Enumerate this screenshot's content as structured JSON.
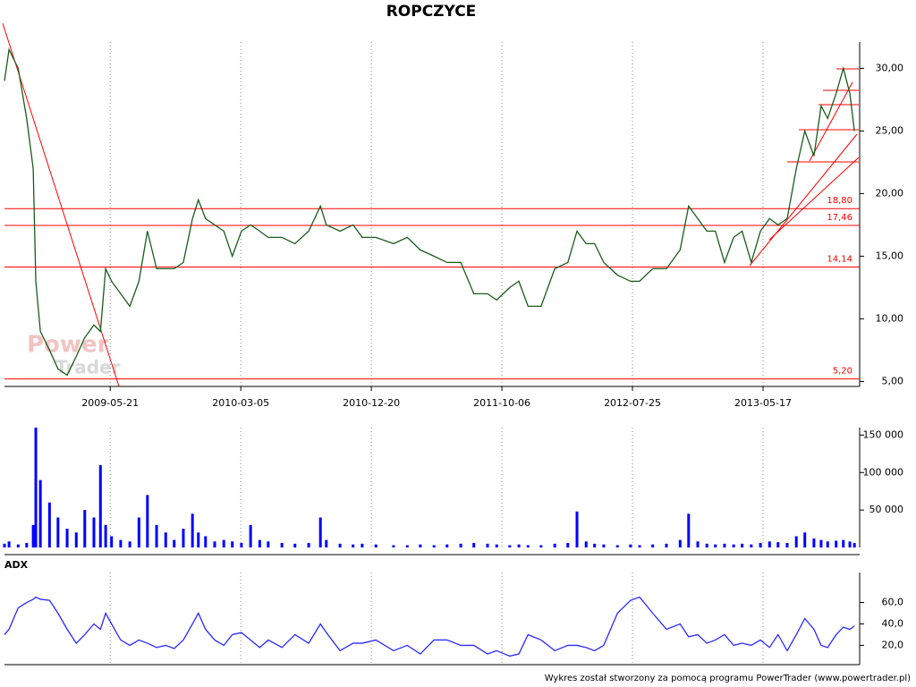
{
  "chart_data": [
    {
      "type": "line",
      "title": "ROPCZYCE",
      "x": [
        0,
        7,
        21,
        34,
        44,
        48,
        55,
        69,
        82,
        96,
        110,
        123,
        137,
        147,
        155,
        164,
        178,
        192,
        206,
        219,
        233,
        247,
        260,
        274,
        288,
        297,
        308,
        322,
        336,
        349,
        363,
        377,
        391,
        404,
        425,
        445,
        466,
        484,
        493,
        514,
        534,
        548,
        569,
        596,
        617,
        637,
        658,
        678,
        699,
        719,
        740,
        754,
        774,
        788,
        802,
        822,
        843,
        863,
        877,
        891,
        904,
        918,
        939,
        959,
        973,
        993,
        1014,
        1035,
        1048,
        1062,
        1076,
        1089,
        1103,
        1117,
        1130,
        1144,
        1158,
        1172,
        1185,
        1199,
        1213,
        1226,
        1240,
        1251,
        1261,
        1274,
        1285,
        1295,
        1302
      ],
      "series": [
        {
          "color": "#1a5c1a",
          "values": [
            29,
            31.5,
            30,
            26,
            22,
            13,
            9,
            7.5,
            6,
            5.5,
            7,
            8.5,
            9.5,
            9,
            14,
            13,
            12,
            11,
            13,
            17,
            14,
            14,
            14,
            14.5,
            18,
            19.5,
            18,
            17.5,
            17,
            15,
            17,
            17.5,
            17,
            16.5,
            16.5,
            16,
            17,
            19,
            17.5,
            17,
            17.5,
            16.5,
            16.5,
            16,
            16.5,
            15.5,
            15,
            14.5,
            14.5,
            12,
            12,
            11.5,
            12.5,
            13,
            11,
            11,
            14,
            14.5,
            17,
            16,
            16,
            14.5,
            13.5,
            13,
            13,
            14,
            14,
            15.5,
            19,
            18,
            17,
            17,
            14.5,
            16.5,
            17,
            14.5,
            17,
            18,
            17.5,
            18,
            22,
            25,
            23,
            27,
            26,
            28,
            30,
            28,
            25
          ]
        }
      ],
      "xlim": [
        0,
        1310
      ],
      "xticks": [
        {
          "value": 162,
          "label": "2009-05-21"
        },
        {
          "value": 362,
          "label": "2010-03-05"
        },
        {
          "value": 562,
          "label": "2010-12-20"
        },
        {
          "value": 762,
          "label": "2011-10-06"
        },
        {
          "value": 962,
          "label": "2012-07-25"
        },
        {
          "value": 1162,
          "label": "2013-05-17"
        }
      ],
      "ylim": [
        4.6,
        32.1
      ],
      "yticks": [
        {
          "value": 5,
          "label": "5,00"
        },
        {
          "value": 10,
          "label": "10,00"
        },
        {
          "value": 15,
          "label": "15,00"
        },
        {
          "value": 20,
          "label": "20,00"
        },
        {
          "value": 25,
          "label": "25,00"
        },
        {
          "value": 30,
          "label": "30,00"
        }
      ],
      "levels": [
        {
          "value": 18.8,
          "label": "18,80"
        },
        {
          "value": 17.46,
          "label": "17,46"
        },
        {
          "value": 14.14,
          "label": "14,14"
        },
        {
          "value": 5.2,
          "label": "5,20"
        }
      ],
      "level_color": "#ff0000",
      "grid": true,
      "watermark": {
        "line1": "Power",
        "line2": "Trader"
      }
    },
    {
      "type": "bar",
      "x": [
        0,
        7,
        21,
        34,
        44,
        48,
        55,
        69,
        82,
        96,
        110,
        123,
        137,
        147,
        155,
        164,
        178,
        192,
        206,
        219,
        233,
        247,
        260,
        274,
        288,
        297,
        308,
        322,
        336,
        349,
        363,
        377,
        391,
        404,
        425,
        445,
        466,
        484,
        493,
        514,
        534,
        548,
        569,
        596,
        617,
        637,
        658,
        678,
        699,
        719,
        740,
        754,
        774,
        788,
        802,
        822,
        843,
        863,
        877,
        891,
        904,
        918,
        939,
        959,
        973,
        993,
        1014,
        1035,
        1048,
        1062,
        1076,
        1089,
        1103,
        1117,
        1130,
        1144,
        1158,
        1172,
        1185,
        1199,
        1213,
        1226,
        1240,
        1251,
        1261,
        1274,
        1285,
        1295,
        1302
      ],
      "series": [
        {
          "color": "#0000ff",
          "values": [
            5000,
            8000,
            4000,
            6000,
            30000,
            160000,
            90000,
            60000,
            40000,
            25000,
            20000,
            50000,
            40000,
            110000,
            30000,
            15000,
            10000,
            8000,
            40000,
            70000,
            30000,
            20000,
            10000,
            25000,
            45000,
            20000,
            15000,
            8000,
            10000,
            8000,
            6000,
            30000,
            10000,
            8000,
            6000,
            5000,
            6000,
            40000,
            10000,
            5000,
            4000,
            5000,
            4000,
            3000,
            3000,
            4000,
            3000,
            4000,
            5000,
            6000,
            5000,
            4000,
            3000,
            4000,
            3000,
            3000,
            5000,
            6000,
            48000,
            8000,
            5000,
            4000,
            3000,
            4000,
            3000,
            4000,
            5000,
            10000,
            45000,
            8000,
            5000,
            4000,
            5000,
            4000,
            5000,
            4000,
            6000,
            8000,
            7000,
            6000,
            15000,
            20000,
            12000,
            10000,
            8000,
            9000,
            10000,
            8000,
            6000
          ]
        }
      ],
      "xlim": [
        0,
        1310
      ],
      "ylim": [
        0,
        160000
      ],
      "yticks": [
        {
          "value": 50000,
          "label": "50 000"
        },
        {
          "value": 100000,
          "label": "100 000"
        },
        {
          "value": 150000,
          "label": "150 000"
        }
      ]
    },
    {
      "type": "line",
      "title": "ADX",
      "x": [
        0,
        7,
        21,
        34,
        44,
        48,
        55,
        69,
        82,
        96,
        110,
        123,
        137,
        147,
        155,
        164,
        178,
        192,
        206,
        219,
        233,
        247,
        260,
        274,
        288,
        297,
        308,
        322,
        336,
        349,
        363,
        377,
        391,
        404,
        425,
        445,
        466,
        484,
        493,
        514,
        534,
        548,
        569,
        596,
        617,
        637,
        658,
        678,
        699,
        719,
        740,
        754,
        774,
        788,
        802,
        822,
        843,
        863,
        877,
        891,
        904,
        918,
        939,
        959,
        973,
        993,
        1014,
        1035,
        1048,
        1062,
        1076,
        1089,
        1103,
        1117,
        1130,
        1144,
        1158,
        1172,
        1185,
        1199,
        1213,
        1226,
        1240,
        1251,
        1261,
        1274,
        1285,
        1295,
        1302
      ],
      "series": [
        {
          "color": "#2a2aff",
          "values": [
            30,
            35,
            55,
            60,
            63,
            65,
            63,
            62,
            50,
            35,
            22,
            30,
            40,
            35,
            50,
            40,
            25,
            20,
            25,
            22,
            18,
            20,
            17,
            25,
            40,
            50,
            35,
            25,
            20,
            30,
            32,
            25,
            18,
            25,
            18,
            30,
            22,
            40,
            32,
            15,
            22,
            22,
            25,
            15,
            20,
            12,
            25,
            25,
            20,
            20,
            12,
            15,
            10,
            12,
            30,
            25,
            15,
            20,
            20,
            18,
            15,
            20,
            50,
            62,
            65,
            50,
            35,
            40,
            28,
            30,
            22,
            25,
            30,
            20,
            22,
            20,
            25,
            18,
            30,
            15,
            30,
            45,
            35,
            20,
            18,
            30,
            37,
            35,
            38
          ]
        }
      ],
      "xlim": [
        0,
        1310
      ],
      "ylim": [
        2,
        88
      ],
      "yticks": [
        {
          "value": 20,
          "label": "20,0"
        },
        {
          "value": 40,
          "label": "40,0"
        },
        {
          "value": 60,
          "label": "60,0"
        }
      ]
    }
  ],
  "footer": "Wykres został stworzony za pomocą programu PowerTrader (www.powertrader.pl)"
}
